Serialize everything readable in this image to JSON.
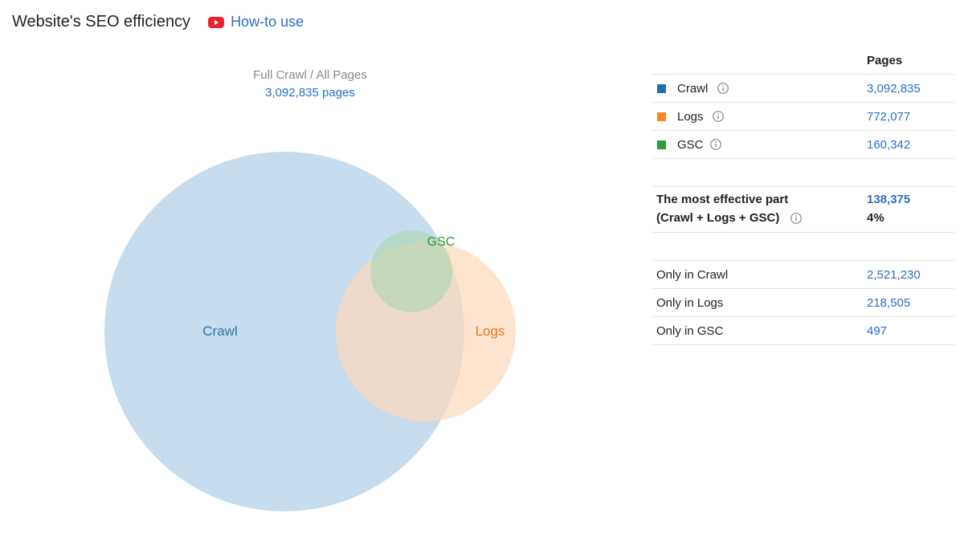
{
  "header": {
    "title": "Website's SEO efficiency",
    "how_to_label": "How-to use"
  },
  "venn": {
    "caption_title": "Full Crawl / All Pages",
    "caption_pages": "3,092,835 pages",
    "labels": {
      "crawl": "Crawl",
      "logs": "Logs",
      "gsc": "GSC"
    },
    "colors": {
      "crawl": "#c7dcec",
      "logs": "#fcd9bd",
      "gsc": "#a9d6b0",
      "crawl_text": "#2f73a8",
      "logs_text": "#e07c22",
      "gsc_text": "#2e9a3c"
    }
  },
  "table": {
    "pages_header": "Pages",
    "sources": [
      {
        "name": "Crawl",
        "value": "3,092,835",
        "color": "#1f6fae"
      },
      {
        "name": "Logs",
        "value": "772,077",
        "color": "#f58a1f"
      },
      {
        "name": "GSC",
        "value": "160,342",
        "color": "#2aa03b"
      }
    ],
    "most_effective": {
      "line1": "The most effective part",
      "line2": "(Crawl + Logs + GSC)",
      "value": "138,375",
      "percent": "4%"
    },
    "only": [
      {
        "name": "Only in Crawl",
        "value": "2,521,230"
      },
      {
        "name": "Only in Logs",
        "value": "218,505"
      },
      {
        "name": "Only in GSC",
        "value": "497"
      }
    ]
  }
}
